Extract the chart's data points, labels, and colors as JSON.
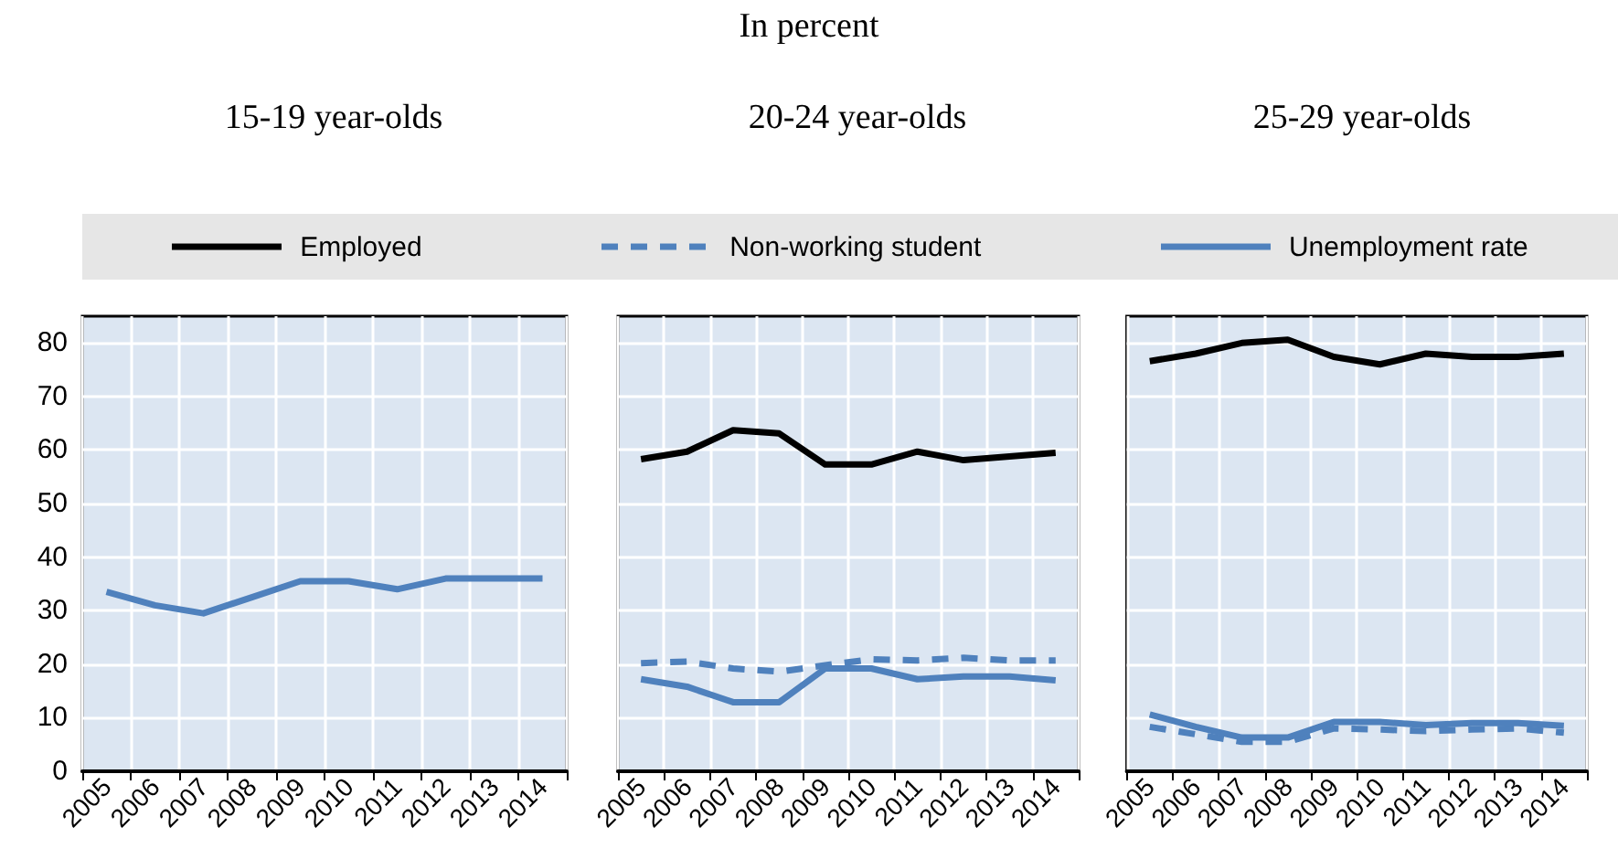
{
  "chart_data": [
    {
      "type": "line",
      "title": "15-19 year-olds",
      "annotations": [
        "In percent"
      ],
      "categories": [
        "2005",
        "2006",
        "2007",
        "2008",
        "2009",
        "2010",
        "2011",
        "2012",
        "2013",
        "2014"
      ],
      "ylim": [
        0,
        85
      ],
      "yticks": [
        0,
        10,
        20,
        30,
        40,
        50,
        60,
        70,
        80
      ],
      "grid": true,
      "series": [
        {
          "color": "#4f81bd",
          "line_style": "solid",
          "values": [
            33.5,
            31,
            29.5,
            32.5,
            35.5,
            35.5,
            34,
            36,
            36,
            36
          ]
        }
      ]
    },
    {
      "type": "line",
      "title": "20-24 year-olds",
      "categories": [
        "2005",
        "2006",
        "2007",
        "2008",
        "2009",
        "2010",
        "2011",
        "2012",
        "2013",
        "2014"
      ],
      "ylim": [
        0,
        85
      ],
      "yticks": [
        0,
        10,
        20,
        30,
        40,
        50,
        60,
        70,
        80
      ],
      "grid": true,
      "tick_labels": "x",
      "legend": "top",
      "series": [
        {
          "name": "Employed",
          "color": "#000000",
          "line_style": "solid",
          "values": [
            58.3,
            59.7,
            63.7,
            63.1,
            57.3,
            57.3,
            59.7,
            58.1,
            58.8,
            59.5
          ]
        },
        {
          "name": "Non-working student",
          "color": "#4f81bd",
          "line_style": "dashed",
          "values": [
            20.2,
            20.5,
            19.2,
            18.6,
            19.8,
            20.9,
            20.7,
            21.2,
            20.7,
            20.7
          ]
        },
        {
          "name": "Unemployment rate",
          "color": "#4f81bd",
          "line_style": "solid",
          "values": [
            17.2,
            15.8,
            12.9,
            12.9,
            19.2,
            19.2,
            17.2,
            17.7,
            17.7,
            17
          ]
        }
      ]
    },
    {
      "type": "line",
      "title": "25-29 year-olds",
      "categories": [
        "2005",
        "2006",
        "2007",
        "2008",
        "2009",
        "2010",
        "2011",
        "2012",
        "2013",
        "2014"
      ],
      "ylim": [
        0,
        85
      ],
      "yticks": [
        0,
        10,
        20,
        30,
        40,
        50,
        60,
        70,
        80
      ],
      "grid": true,
      "tick_labels": "x",
      "series": [
        {
          "color": "#000000",
          "line_style": "solid",
          "values": [
            76.6,
            78,
            80,
            80.6,
            77.4,
            76,
            78,
            77.4,
            77.4,
            78
          ]
        },
        {
          "color": "#4f81bd",
          "line_style": "dashed",
          "values": [
            8.3,
            6.9,
            5.5,
            5.5,
            8,
            7.8,
            7.5,
            7.8,
            8,
            7.2
          ]
        },
        {
          "color": "#4f81bd",
          "line_style": "solid",
          "values": [
            10.6,
            8.3,
            6.3,
            6.3,
            9.2,
            9.2,
            8.6,
            9,
            9,
            8.5
          ]
        }
      ]
    }
  ]
}
